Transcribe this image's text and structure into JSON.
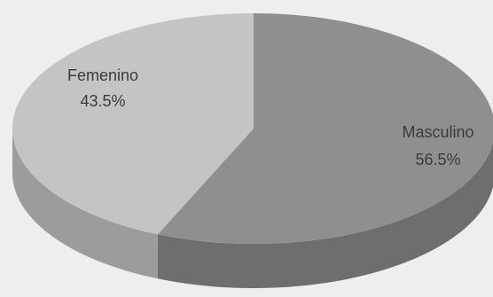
{
  "chart_data": {
    "type": "pie",
    "style": "3d",
    "categories": [
      "Masculino",
      "Femenino"
    ],
    "values": [
      56.5,
      43.5
    ],
    "value_labels": [
      "56.5%",
      "43.5%"
    ],
    "colors": [
      "#8f8f8f",
      "#c4c4c4"
    ],
    "side_colors": [
      "#6e6e6e",
      "#9c9c9c"
    ],
    "title": "",
    "legend": "none"
  }
}
